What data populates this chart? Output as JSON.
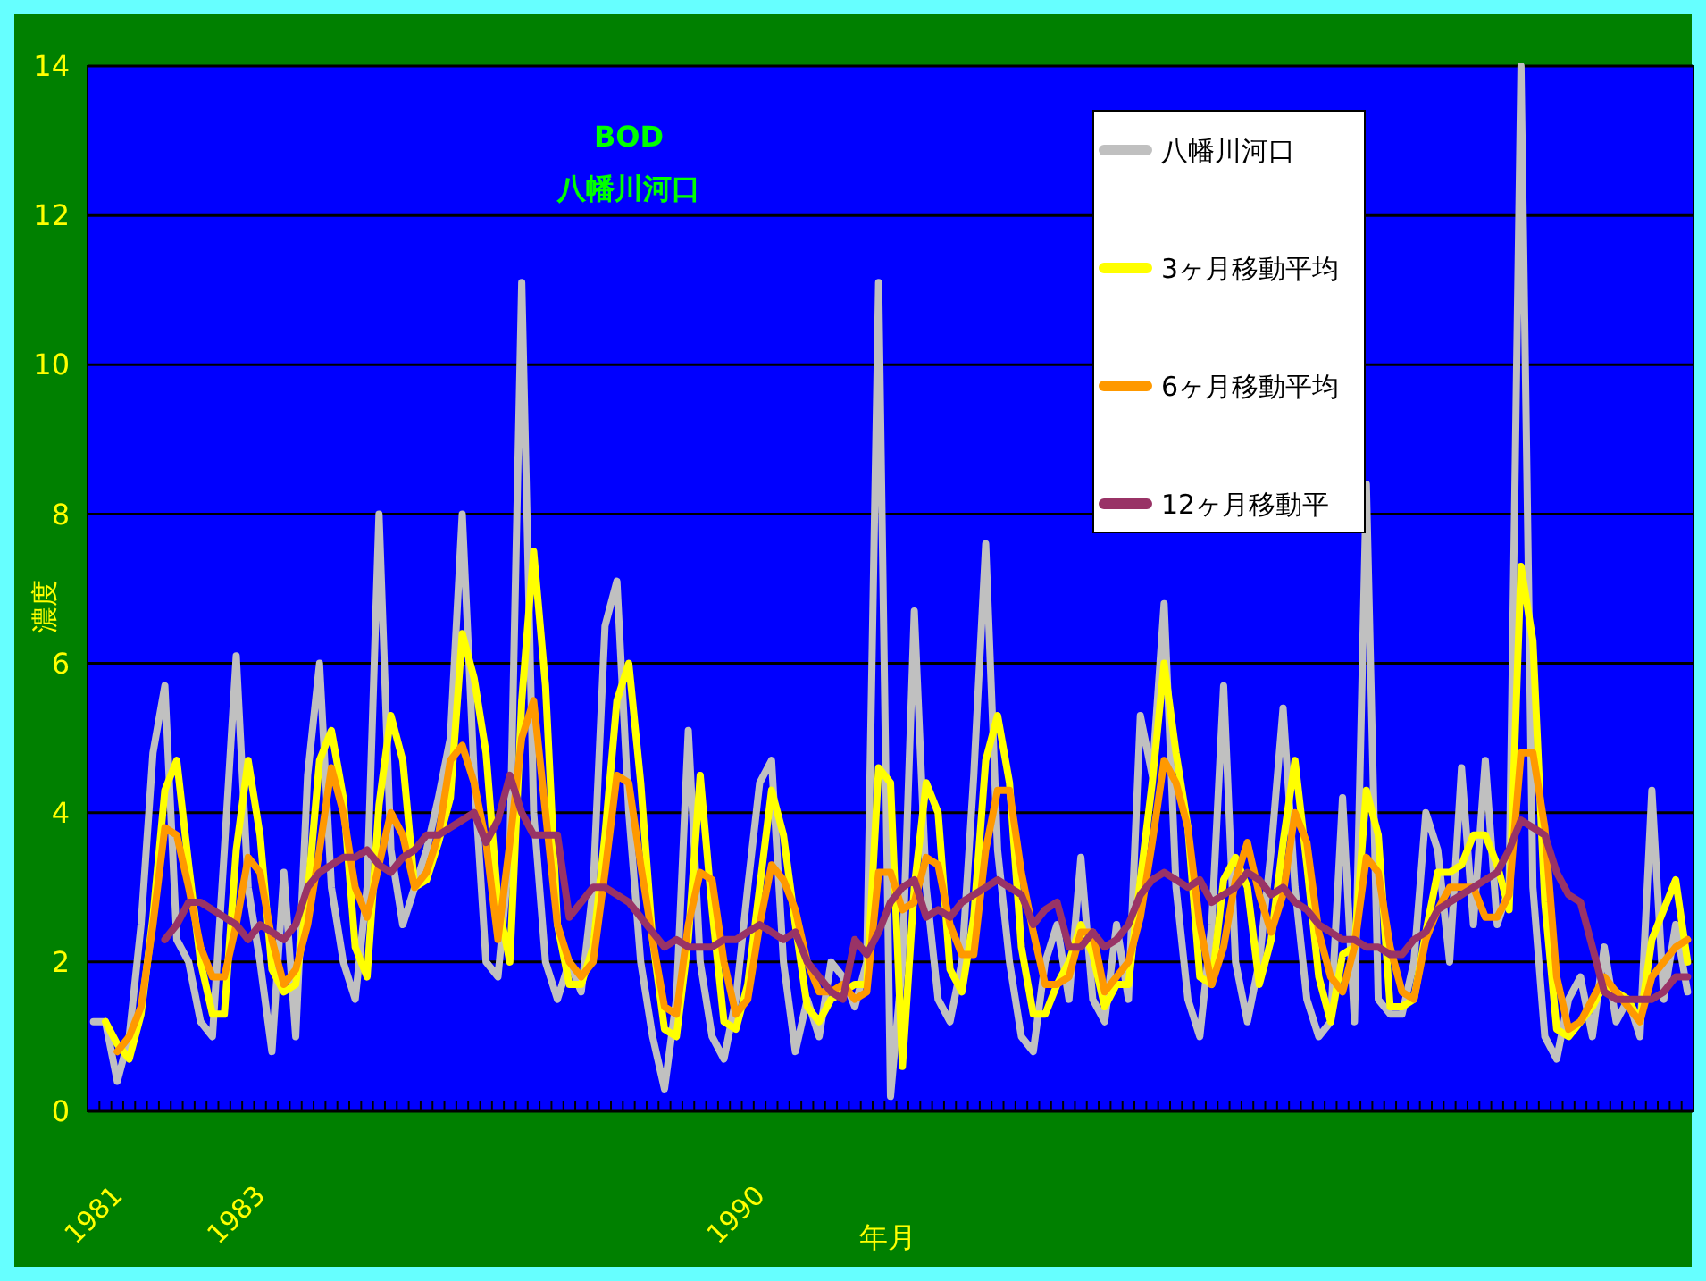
{
  "chart_data": {
    "type": "line",
    "title": "BOD",
    "subtitle": "八幡川河口",
    "xlabel": "年月",
    "ylabel": "濃度",
    "categories": [
      "1981",
      null,
      null,
      null,
      null,
      null,
      null,
      null,
      null,
      null,
      null,
      null,
      "1983",
      null,
      null,
      null,
      null,
      null,
      null,
      null,
      null,
      null,
      null,
      null,
      null,
      null,
      null,
      null,
      null,
      null,
      null,
      null,
      null,
      null,
      null,
      null,
      null,
      null,
      null,
      null,
      null,
      null,
      null,
      null,
      null,
      null,
      null,
      null,
      null,
      null,
      null,
      null,
      null,
      null,
      "1990",
      null,
      null,
      null,
      null,
      null,
      null,
      null,
      null,
      null,
      null,
      null,
      null,
      null,
      null,
      null,
      null,
      null,
      null,
      null,
      null,
      null,
      null,
      null,
      null,
      null,
      null,
      null,
      null,
      null,
      null,
      null,
      null,
      null,
      null,
      null,
      null,
      null,
      null,
      null,
      null,
      null,
      null,
      null,
      null,
      null,
      null,
      null,
      null,
      null,
      null,
      null,
      null,
      null,
      null,
      null,
      null,
      null,
      null,
      null,
      null,
      null,
      null,
      null,
      null,
      null,
      null,
      null,
      null,
      null,
      null,
      null,
      null,
      null,
      null,
      null,
      null,
      null,
      null,
      null,
      null
    ],
    "series": [
      {
        "name": "八幡川河口",
        "color": "#c0c0c0",
        "values": [
          1.2,
          1.2,
          0.4,
          1.0,
          2.5,
          4.8,
          5.7,
          2.3,
          2.0,
          1.2,
          1.0,
          3.5,
          6.1,
          3.0,
          2.0,
          0.8,
          3.2,
          1.0,
          4.5,
          6.0,
          3.0,
          2.0,
          1.5,
          3.0,
          8.0,
          3.5,
          2.5,
          3.0,
          3.5,
          4.2,
          5.0,
          8.0,
          4.5,
          2.0,
          1.8,
          3.5,
          11.1,
          4.0,
          2.0,
          1.5,
          2.0,
          1.6,
          3.0,
          6.5,
          7.1,
          4.0,
          2.0,
          1.0,
          0.3,
          1.5,
          5.1,
          2.0,
          1.0,
          0.7,
          1.5,
          3.0,
          4.4,
          4.7,
          2.0,
          0.8,
          1.5,
          1.0,
          2.0,
          1.8,
          1.4,
          2.0,
          11.1,
          0.2,
          2.0,
          6.7,
          3.0,
          1.5,
          1.2,
          2.0,
          4.5,
          7.6,
          3.5,
          2.0,
          1.0,
          0.8,
          2.0,
          2.5,
          1.5,
          3.4,
          1.5,
          1.2,
          2.5,
          1.5,
          5.3,
          4.5,
          6.8,
          3.0,
          1.5,
          1.0,
          2.5,
          5.7,
          2.0,
          1.2,
          2.0,
          3.5,
          5.4,
          3.0,
          1.5,
          1.0,
          1.2,
          4.2,
          1.2,
          8.4,
          1.5,
          1.3,
          1.3,
          2.0,
          4.0,
          3.5,
          2.0,
          4.6,
          2.5,
          4.7,
          2.5,
          3.0,
          14.0,
          3.0,
          1.0,
          0.7,
          1.5,
          1.8,
          1.0,
          2.2,
          1.2,
          1.5,
          1.0,
          4.3,
          1.5,
          2.5,
          1.6
        ]
      },
      {
        "name": "3ヶ月移動平均",
        "color": "#ffff00",
        "values": [
          null,
          1.2,
          0.9,
          0.7,
          1.3,
          2.6,
          4.3,
          4.7,
          3.3,
          2.0,
          1.3,
          1.3,
          3.5,
          4.7,
          3.7,
          1.9,
          1.6,
          1.7,
          2.9,
          4.7,
          5.1,
          4.2,
          2.2,
          1.8,
          4.1,
          5.3,
          4.7,
          3.0,
          3.1,
          3.6,
          4.2,
          6.4,
          5.8,
          4.8,
          2.8,
          2.0,
          5.5,
          7.5,
          5.7,
          2.5,
          1.7,
          1.7,
          2.2,
          3.7,
          5.5,
          6.0,
          4.4,
          2.3,
          1.1,
          1.0,
          2.3,
          4.5,
          2.7,
          1.2,
          1.1,
          1.7,
          3.0,
          4.3,
          3.7,
          2.5,
          1.4,
          1.2,
          1.5,
          1.6,
          1.7,
          1.7,
          4.6,
          4.4,
          0.6,
          3.0,
          4.4,
          4.0,
          1.9,
          1.6,
          2.6,
          4.7,
          5.3,
          4.4,
          2.2,
          1.3,
          1.3,
          1.7,
          2.0,
          2.5,
          2.1,
          1.4,
          1.7,
          1.7,
          3.1,
          4.4,
          6.0,
          4.8,
          3.8,
          1.8,
          1.7,
          3.1,
          3.4,
          3.0,
          1.7,
          2.3,
          3.6,
          4.7,
          3.3,
          1.8,
          1.2,
          2.1,
          2.2,
          4.3,
          3.7,
          1.4,
          1.4,
          1.5,
          2.4,
          3.2,
          3.2,
          3.3,
          3.7,
          3.7,
          3.3,
          2.7,
          7.3,
          6.3,
          2.8,
          1.1,
          1.0,
          1.2,
          1.4,
          1.7,
          1.6,
          1.5,
          1.2,
          2.3,
          2.7,
          3.1,
          2.0
        ]
      },
      {
        "name": "6ヶ月移動平均",
        "color": "#ff9900",
        "values": [
          null,
          null,
          0.8,
          1.0,
          1.4,
          2.5,
          3.8,
          3.7,
          3.0,
          2.2,
          1.8,
          1.8,
          2.5,
          3.4,
          3.2,
          2.3,
          1.7,
          1.9,
          2.5,
          3.5,
          4.6,
          4.0,
          3.0,
          2.6,
          3.3,
          4.0,
          3.7,
          3.0,
          3.2,
          3.7,
          4.7,
          4.9,
          4.4,
          3.6,
          2.3,
          3.6,
          5.0,
          5.5,
          4.0,
          2.5,
          2.0,
          1.8,
          2.0,
          3.2,
          4.5,
          4.4,
          3.3,
          2.3,
          1.4,
          1.3,
          2.5,
          3.2,
          3.1,
          2.0,
          1.3,
          1.5,
          2.5,
          3.3,
          3.1,
          2.7,
          2.0,
          1.6,
          1.6,
          1.7,
          1.5,
          1.6,
          3.2,
          3.2,
          2.7,
          2.8,
          3.4,
          3.3,
          2.5,
          2.1,
          2.1,
          3.5,
          4.3,
          4.3,
          3.2,
          2.4,
          1.7,
          1.7,
          1.8,
          2.4,
          2.4,
          1.6,
          1.8,
          2.0,
          2.6,
          3.6,
          4.7,
          4.4,
          3.8,
          2.5,
          1.7,
          2.2,
          3.1,
          3.6,
          2.9,
          2.4,
          2.9,
          4.0,
          3.6,
          2.4,
          1.8,
          1.6,
          2.2,
          3.4,
          3.2,
          2.2,
          1.6,
          1.5,
          2.3,
          2.7,
          3.0,
          3.0,
          3.0,
          2.6,
          2.6,
          2.9,
          4.8,
          4.8,
          3.8,
          1.8,
          1.1,
          1.2,
          1.5,
          1.8,
          1.6,
          1.4,
          1.2,
          1.8,
          2.0,
          2.2,
          2.3
        ]
      },
      {
        "name": "12ヶ月移動平",
        "color": "#993366",
        "values": [
          null,
          null,
          null,
          null,
          null,
          null,
          2.3,
          2.5,
          2.8,
          2.8,
          2.7,
          2.6,
          2.5,
          2.3,
          2.5,
          2.4,
          2.3,
          2.5,
          3.0,
          3.2,
          3.3,
          3.4,
          3.4,
          3.5,
          3.3,
          3.2,
          3.4,
          3.5,
          3.7,
          3.7,
          3.8,
          3.9,
          4.0,
          3.6,
          3.9,
          4.5,
          4.0,
          3.7,
          3.7,
          3.7,
          2.6,
          2.8,
          3.0,
          3.0,
          2.9,
          2.8,
          2.6,
          2.4,
          2.2,
          2.3,
          2.2,
          2.2,
          2.2,
          2.3,
          2.3,
          2.4,
          2.5,
          2.4,
          2.3,
          2.4,
          2.0,
          1.8,
          1.6,
          1.5,
          2.3,
          2.1,
          2.4,
          2.8,
          3.0,
          3.1,
          2.6,
          2.7,
          2.6,
          2.8,
          2.9,
          3.0,
          3.1,
          3.0,
          2.9,
          2.5,
          2.7,
          2.8,
          2.2,
          2.2,
          2.4,
          2.2,
          2.3,
          2.5,
          2.9,
          3.1,
          3.2,
          3.1,
          3.0,
          3.1,
          2.8,
          2.9,
          3.0,
          3.2,
          3.1,
          2.9,
          3.0,
          2.8,
          2.7,
          2.5,
          2.4,
          2.3,
          2.3,
          2.2,
          2.2,
          2.1,
          2.1,
          2.3,
          2.4,
          2.7,
          2.8,
          2.9,
          3.0,
          3.1,
          3.2,
          3.5,
          3.9,
          3.8,
          3.7,
          3.2,
          2.9,
          2.8,
          2.2,
          1.6,
          1.5,
          1.5,
          1.5,
          1.5,
          1.6,
          1.8,
          1.8
        ]
      }
    ],
    "ylim": [
      0,
      14
    ],
    "yticks": [
      0,
      2,
      4,
      6,
      8,
      10,
      12,
      14
    ],
    "grid": "y",
    "legend": "top right",
    "marker": "none",
    "line_style": "solid"
  }
}
